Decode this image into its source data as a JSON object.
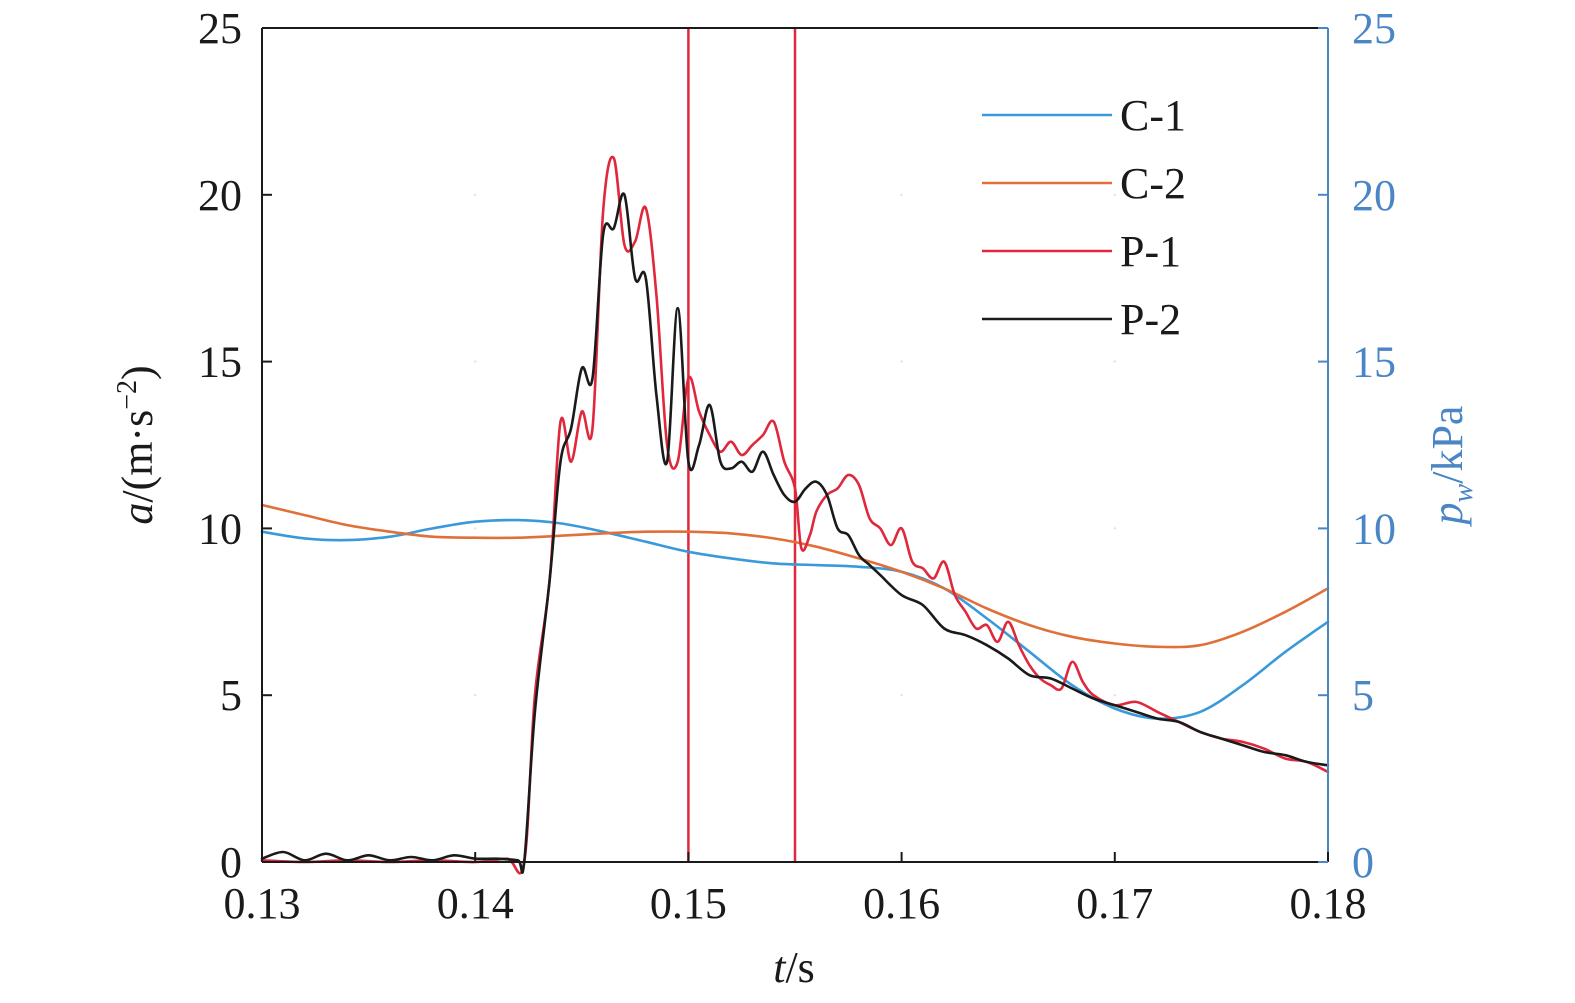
{
  "chart_data": {
    "type": "line",
    "xlabel": {
      "italic": "t",
      "rest": "/s"
    },
    "ylabel_left": {
      "italic": "a",
      "rest": "/(m·s",
      "sup": "−2",
      "close": ")"
    },
    "ylabel_right": {
      "italic": "p",
      "sub": "w",
      "rest": "/kPa"
    },
    "xlim": [
      0.13,
      0.18
    ],
    "ylim_left": [
      0,
      25
    ],
    "ylim_right": [
      0,
      25
    ],
    "x_ticks": [
      "0.13",
      "0.14",
      "0.15",
      "0.16",
      "0.17",
      "0.18"
    ],
    "y_ticks_left": [
      "0",
      "5",
      "10",
      "15",
      "20",
      "25"
    ],
    "y_ticks_right": [
      "0",
      "5",
      "10",
      "15",
      "20",
      "25"
    ],
    "vlines": [
      0.15,
      0.155
    ],
    "legend_position": "top-right",
    "colors": {
      "C-1": "#3a9ad9",
      "C-2": "#e0703a",
      "P-1": "#e0283c",
      "P-2": "#1a1a1a",
      "vline": "#e0283c",
      "right_axis": "#4a86c5"
    },
    "series": [
      {
        "name": "C-1",
        "axis": "right",
        "x": [
          0.13,
          0.132,
          0.134,
          0.136,
          0.138,
          0.14,
          0.142,
          0.144,
          0.146,
          0.148,
          0.15,
          0.152,
          0.154,
          0.156,
          0.158,
          0.16,
          0.162,
          0.164,
          0.166,
          0.168,
          0.17,
          0.172,
          0.174,
          0.176,
          0.178,
          0.18
        ],
        "y": [
          9.9,
          9.7,
          9.65,
          9.75,
          10.0,
          10.2,
          10.25,
          10.15,
          9.9,
          9.6,
          9.3,
          9.1,
          8.95,
          8.9,
          8.85,
          8.7,
          8.2,
          7.3,
          6.3,
          5.3,
          4.6,
          4.3,
          4.5,
          5.3,
          6.3,
          7.2
        ]
      },
      {
        "name": "C-2",
        "axis": "right",
        "x": [
          0.13,
          0.132,
          0.134,
          0.136,
          0.138,
          0.14,
          0.142,
          0.144,
          0.146,
          0.148,
          0.15,
          0.152,
          0.154,
          0.156,
          0.158,
          0.16,
          0.162,
          0.164,
          0.166,
          0.168,
          0.17,
          0.172,
          0.174,
          0.176,
          0.178,
          0.18
        ],
        "y": [
          10.7,
          10.4,
          10.1,
          9.9,
          9.75,
          9.72,
          9.72,
          9.78,
          9.85,
          9.9,
          9.9,
          9.85,
          9.7,
          9.45,
          9.1,
          8.7,
          8.2,
          7.6,
          7.1,
          6.75,
          6.55,
          6.45,
          6.5,
          6.9,
          7.5,
          8.2
        ]
      },
      {
        "name": "P-1",
        "axis": "left",
        "x": [
          0.13,
          0.132,
          0.134,
          0.136,
          0.138,
          0.14,
          0.1415,
          0.1423,
          0.1428,
          0.1435,
          0.144,
          0.1445,
          0.145,
          0.1455,
          0.146,
          0.1465,
          0.147,
          0.1475,
          0.148,
          0.1485,
          0.149,
          0.1495,
          0.15,
          0.1505,
          0.151,
          0.1515,
          0.152,
          0.1525,
          0.153,
          0.1535,
          0.154,
          0.1545,
          0.155,
          0.1553,
          0.1557,
          0.156,
          0.1565,
          0.157,
          0.1575,
          0.158,
          0.1585,
          0.159,
          0.1595,
          0.16,
          0.1605,
          0.161,
          0.1615,
          0.162,
          0.1625,
          0.163,
          0.1635,
          0.164,
          0.1645,
          0.165,
          0.1655,
          0.166,
          0.1665,
          0.167,
          0.1675,
          0.168,
          0.1685,
          0.169,
          0.17,
          0.171,
          0.172,
          0.173,
          0.174,
          0.175,
          0.176,
          0.177,
          0.178,
          0.179,
          0.18
        ],
        "y": [
          0.05,
          0.0,
          0.05,
          0.0,
          0.05,
          0.0,
          0.1,
          0.0,
          5.0,
          8.5,
          13.2,
          12.0,
          13.5,
          13.0,
          19.5,
          21.1,
          18.5,
          18.6,
          19.6,
          17.0,
          12.5,
          12.0,
          14.5,
          13.5,
          12.8,
          12.3,
          12.6,
          12.2,
          12.5,
          12.8,
          13.2,
          12.0,
          11.2,
          9.4,
          9.8,
          10.5,
          11.0,
          11.2,
          11.6,
          11.3,
          10.3,
          10.0,
          9.5,
          10.0,
          9.0,
          8.8,
          8.5,
          9.0,
          8.0,
          7.5,
          7.0,
          7.1,
          6.6,
          7.2,
          6.5,
          5.9,
          5.5,
          5.3,
          5.2,
          6.0,
          5.4,
          5.0,
          4.7,
          4.8,
          4.5,
          4.2,
          3.9,
          3.7,
          3.6,
          3.4,
          3.1,
          3.0,
          2.7
        ]
      },
      {
        "name": "P-2",
        "axis": "left",
        "x": [
          0.13,
          0.131,
          0.132,
          0.133,
          0.134,
          0.135,
          0.136,
          0.137,
          0.138,
          0.139,
          0.14,
          0.141,
          0.142,
          0.1423,
          0.1428,
          0.1435,
          0.144,
          0.1445,
          0.145,
          0.1455,
          0.146,
          0.1465,
          0.147,
          0.1475,
          0.148,
          0.1485,
          0.149,
          0.1495,
          0.15,
          0.1505,
          0.151,
          0.1515,
          0.152,
          0.1525,
          0.153,
          0.1535,
          0.154,
          0.1545,
          0.155,
          0.1555,
          0.156,
          0.1565,
          0.157,
          0.1575,
          0.158,
          0.1585,
          0.159,
          0.16,
          0.161,
          0.162,
          0.163,
          0.164,
          0.165,
          0.166,
          0.167,
          0.168,
          0.169,
          0.17,
          0.171,
          0.172,
          0.173,
          0.174,
          0.175,
          0.176,
          0.177,
          0.178,
          0.179,
          0.18
        ],
        "y": [
          0.1,
          0.3,
          0.05,
          0.25,
          0.05,
          0.2,
          0.05,
          0.15,
          0.05,
          0.2,
          0.1,
          0.1,
          0.05,
          0.0,
          4.5,
          8.5,
          12.0,
          13.0,
          14.8,
          14.5,
          18.8,
          19.0,
          20.0,
          17.5,
          17.5,
          14.0,
          12.0,
          16.6,
          12.0,
          12.5,
          13.7,
          12.0,
          11.8,
          12.0,
          11.7,
          12.3,
          11.6,
          11.0,
          10.8,
          11.2,
          11.4,
          11.0,
          10.0,
          9.8,
          9.2,
          8.9,
          8.6,
          8.0,
          7.7,
          7.0,
          6.8,
          6.5,
          6.1,
          5.6,
          5.5,
          5.2,
          4.9,
          4.7,
          4.5,
          4.3,
          4.2,
          3.9,
          3.7,
          3.5,
          3.3,
          3.2,
          3.0,
          2.9
        ]
      }
    ]
  }
}
